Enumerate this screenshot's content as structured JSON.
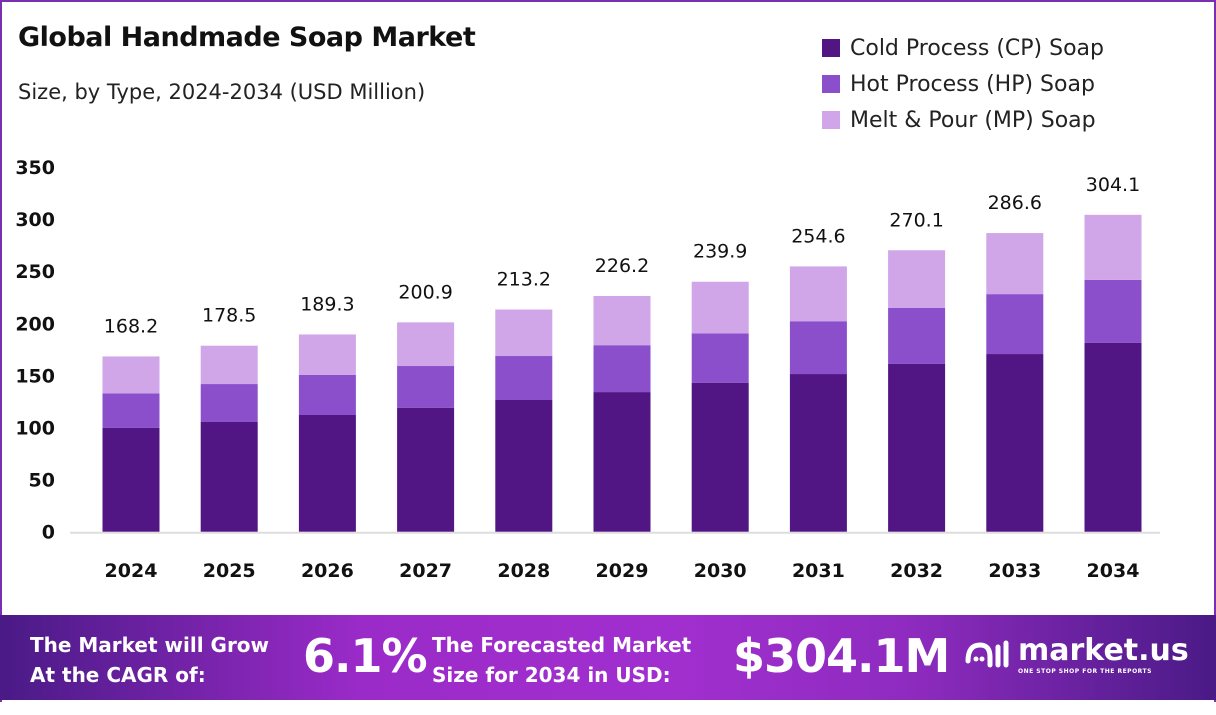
{
  "chart_data": {
    "type": "bar",
    "stacked": true,
    "title": "Global Handmade Soap Market",
    "subtitle": "Size, by Type, 2024-2034 (USD Million)",
    "xlabel": "",
    "ylabel": "",
    "ylim": [
      0,
      350
    ],
    "yticks": [
      0,
      50,
      100,
      150,
      200,
      250,
      300,
      350
    ],
    "categories": [
      "2024",
      "2025",
      "2026",
      "2027",
      "2028",
      "2029",
      "2030",
      "2031",
      "2032",
      "2033",
      "2034"
    ],
    "series": [
      {
        "name": "Cold Process (CP) Soap",
        "color": "#521684",
        "values": [
          99.8,
          105.6,
          112.0,
          119.0,
          126.4,
          134.0,
          143.0,
          151.3,
          161.0,
          170.5,
          181.4
        ]
      },
      {
        "name": "Hot Process (HP) Soap",
        "color": "#8b4fcb",
        "values": [
          33.0,
          36.1,
          38.4,
          40.0,
          42.2,
          45.0,
          47.4,
          50.7,
          53.7,
          57.5,
          60.2
        ]
      },
      {
        "name": "Melt & Pour (MP) Soap",
        "color": "#d0a6e8",
        "values": [
          35.4,
          36.8,
          38.9,
          41.9,
          44.6,
          47.2,
          49.5,
          52.6,
          55.4,
          58.6,
          62.5
        ]
      }
    ],
    "totals": [
      "168.2",
      "178.5",
      "189.3",
      "200.9",
      "213.2",
      "226.2",
      "239.9",
      "254.6",
      "270.1",
      "286.6",
      "304.1"
    ],
    "legend_position": "top-right",
    "grid": false
  },
  "footer": {
    "cagr_label_1": "The Market will Grow",
    "cagr_label_2": "At the CAGR of:",
    "cagr_value": "6.1%",
    "forecast_label_1": "The Forecasted Market",
    "forecast_label_2": "Size for 2034 in USD:",
    "forecast_value": "$304.1M",
    "brand": "market.us",
    "brand_tagline": "ONE STOP SHOP FOR THE REPORTS"
  }
}
